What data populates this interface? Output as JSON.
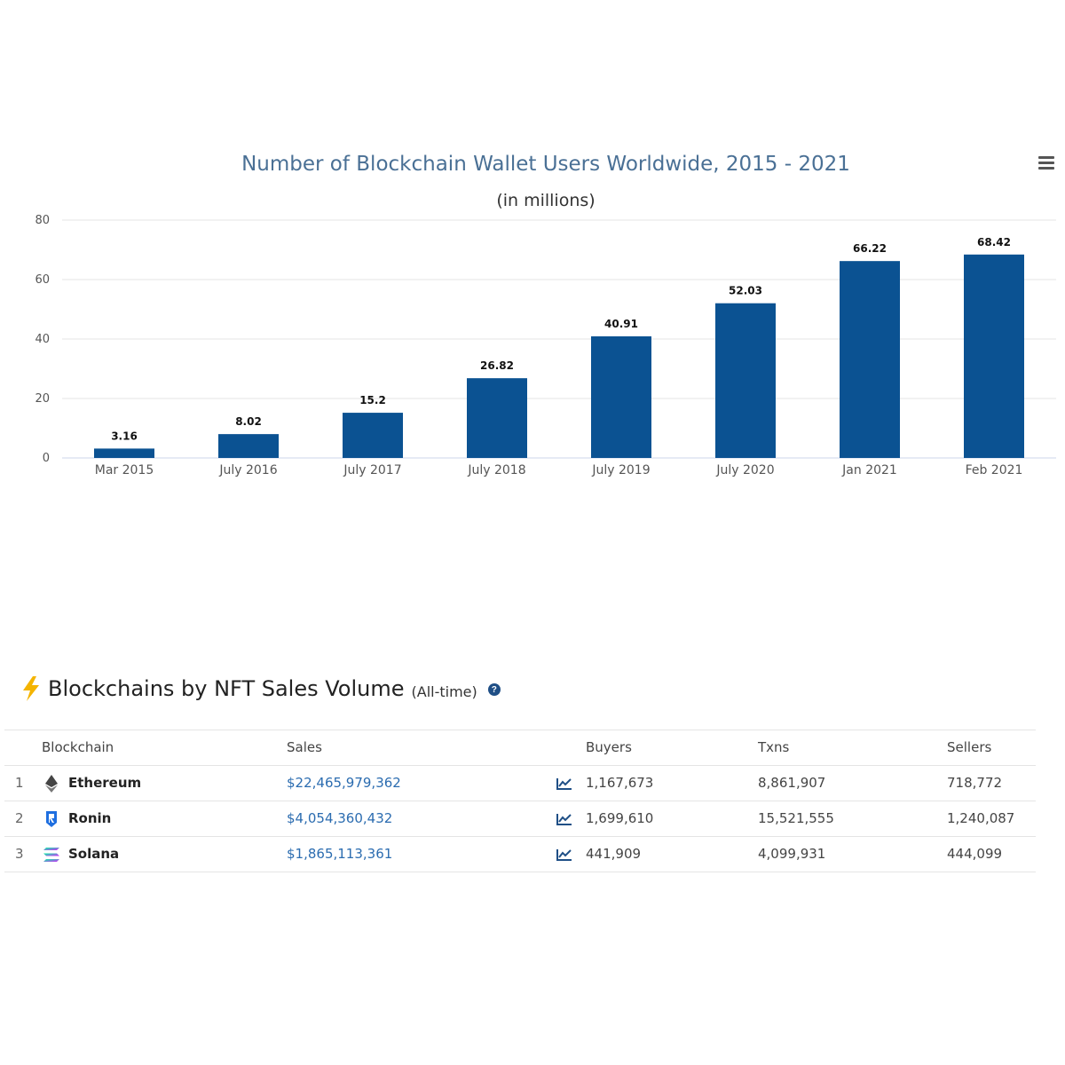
{
  "chart_data": {
    "type": "bar",
    "title": "Number of Blockchain Wallet Users Worldwide, 2015 - 2021",
    "subtitle": "(in millions)",
    "categories": [
      "Mar 2015",
      "July 2016",
      "July 2017",
      "July 2018",
      "July 2019",
      "July 2020",
      "Jan 2021",
      "Feb 2021"
    ],
    "values": [
      3.16,
      8.02,
      15.2,
      26.82,
      40.91,
      52.03,
      66.22,
      68.42
    ],
    "value_labels": [
      "3.16",
      "8.02",
      "15.2",
      "26.82",
      "40.91",
      "52.03",
      "66.22",
      "68.42"
    ],
    "ylim": [
      0,
      80
    ],
    "yticks": [
      0,
      20,
      40,
      60,
      80
    ],
    "grid": true,
    "bar_color": "#0b5292"
  },
  "menu": {
    "icon": "hamburger-menu-icon"
  },
  "nft": {
    "title": "Blockchains by NFT Sales Volume",
    "subtitle": "(All-time)",
    "title_icon": "lightning-bolt-icon",
    "help_icon": "question-circle-icon",
    "help_glyph": "?",
    "columns": [
      "Blockchain",
      "Sales",
      "Buyers",
      "Txns",
      "Sellers"
    ],
    "rows": [
      {
        "rank": "1",
        "chain": "Ethereum",
        "icon": "ethereum-icon",
        "sales": "$22,465,979,362",
        "buyers": "1,167,673",
        "txns": "8,861,907",
        "sellers": "718,772"
      },
      {
        "rank": "2",
        "chain": "Ronin",
        "icon": "ronin-icon",
        "sales": "$4,054,360,432",
        "buyers": "1,699,610",
        "txns": "15,521,555",
        "sellers": "1,240,087"
      },
      {
        "rank": "3",
        "chain": "Solana",
        "icon": "solana-icon",
        "sales": "$1,865,113,361",
        "buyers": "441,909",
        "txns": "4,099,931",
        "sellers": "444,099"
      }
    ]
  }
}
